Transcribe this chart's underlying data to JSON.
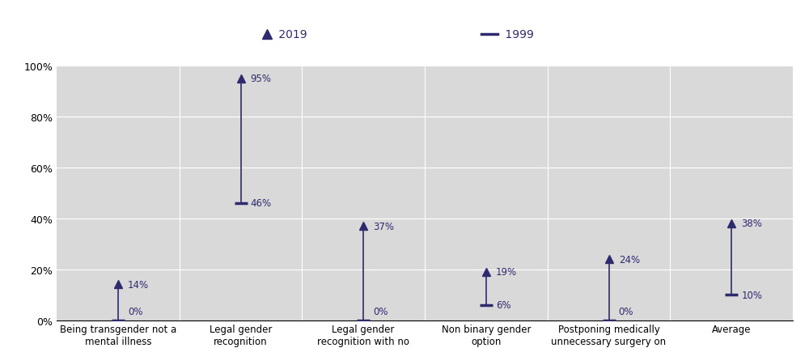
{
  "categories": [
    "Being transgender not a\nmental illness",
    "Legal gender\nrecognition",
    "Legal gender\nrecognition with no\nmedical requirement",
    "Non binary gender\noption",
    "Postponing medically\nunnecessary surgery on\nintersex minors",
    "Average"
  ],
  "values_2019": [
    14,
    95,
    37,
    19,
    24,
    38
  ],
  "values_1999": [
    0,
    46,
    0,
    6,
    0,
    10
  ],
  "color": "#2E2A6E",
  "background_color": "#D9D9D9",
  "legend_area_color": "#D9D9D9",
  "ylim": [
    0,
    100
  ],
  "yticks": [
    0,
    20,
    40,
    60,
    80,
    100
  ],
  "ytick_labels": [
    "0%",
    "20%",
    "40%",
    "60%",
    "80%",
    "100%"
  ],
  "legend_2019_label": "2019",
  "legend_1999_label": "1999"
}
